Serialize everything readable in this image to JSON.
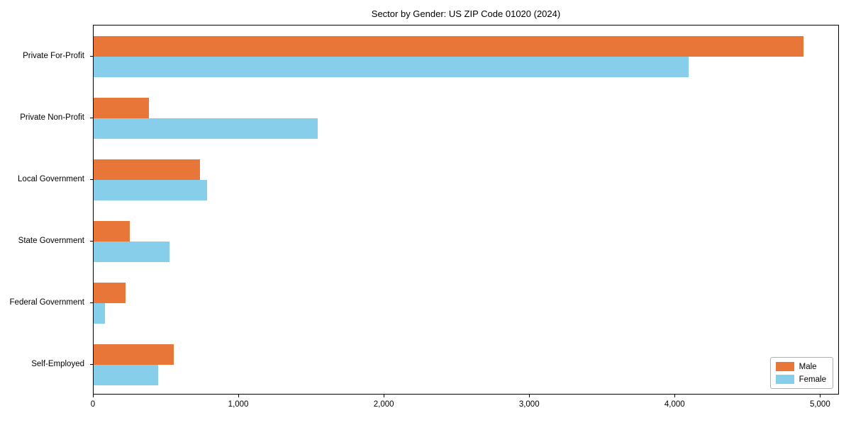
{
  "chart_data": {
    "type": "bar",
    "orientation": "horizontal",
    "title": "Sector by Gender: US ZIP Code 01020 (2024)",
    "categories": [
      "Private For-Profit",
      "Private Non-Profit",
      "Local Government",
      "State Government",
      "Federal Government",
      "Self-Employed"
    ],
    "series": [
      {
        "name": "Male",
        "color": "#e97639",
        "values": [
          4890,
          380,
          735,
          250,
          220,
          550
        ]
      },
      {
        "name": "Female",
        "color": "#87ceeb",
        "values": [
          4100,
          1545,
          780,
          525,
          80,
          445
        ]
      }
    ],
    "xlabel": "",
    "ylabel": "",
    "xlim": [
      0,
      5130
    ],
    "xticks": [
      0,
      1000,
      2000,
      3000,
      4000,
      5000
    ],
    "xtick_labels": [
      "0",
      "1,000",
      "2,000",
      "3,000",
      "4,000",
      "5,000"
    ],
    "grid": false,
    "legend_position": "lower right"
  }
}
